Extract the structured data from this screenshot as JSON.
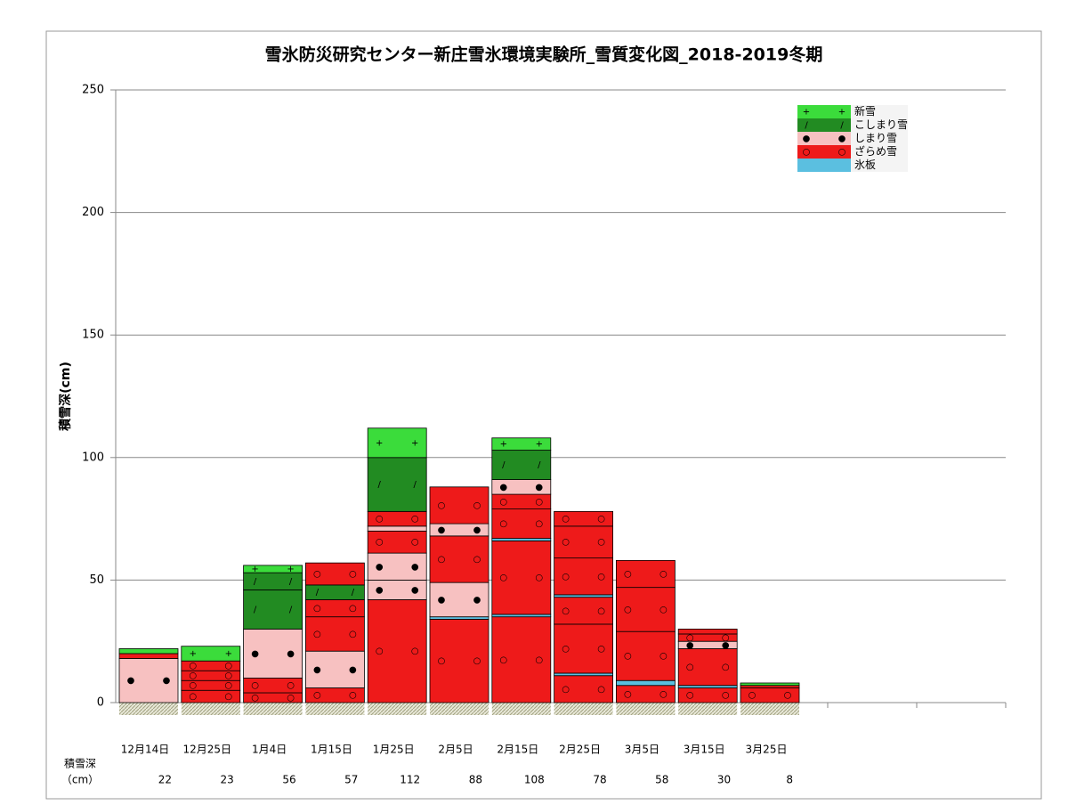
{
  "chart_data": {
    "type": "snow-profile",
    "title": "雪氷防災研究センター新庄雪氷環境実験所_雪質変化図_2018-2019冬期",
    "y_label": "積雪深(cm)",
    "depth_row_label": "積雪深",
    "depth_row_unit": "（cm）",
    "ylim": [
      0,
      250
    ],
    "yticks": [
      0,
      50,
      100,
      150,
      200,
      250
    ],
    "grid": true,
    "legend_position": "upper right",
    "layer_types": [
      {
        "name": "新雪",
        "color": "#3bdc3b",
        "symbol": "+"
      },
      {
        "name": "こしまり雪",
        "color": "#228b22",
        "symbol": "/"
      },
      {
        "name": "しまり雪",
        "color": "#f7c1c1",
        "symbol": "●"
      },
      {
        "name": "ざらめ雪",
        "color": "#ee1a1a",
        "symbol": "○"
      },
      {
        "name": "氷板",
        "color": "#5bbfe0",
        "symbol": "—"
      }
    ],
    "categories": [
      "12月14日",
      "12月25日",
      "1月4日",
      "1月15日",
      "1月25日",
      "2月5日",
      "2月15日",
      "2月25日",
      "3月5日",
      "3月15日",
      "3月25日"
    ],
    "values": [
      22,
      23,
      56,
      57,
      112,
      88,
      108,
      78,
      58,
      30,
      8
    ],
    "layers": [
      [
        {
          "type": 2,
          "thickness": 18
        },
        {
          "type": 3,
          "thickness": 2
        },
        {
          "type": 0,
          "thickness": 2
        }
      ],
      [
        {
          "type": 3,
          "thickness": 5
        },
        {
          "type": 3,
          "thickness": 4
        },
        {
          "type": 3,
          "thickness": 4
        },
        {
          "type": 3,
          "thickness": 4
        },
        {
          "type": 0,
          "thickness": 6
        }
      ],
      [
        {
          "type": 3,
          "thickness": 4
        },
        {
          "type": 3,
          "thickness": 6
        },
        {
          "type": 2,
          "thickness": 20
        },
        {
          "type": 1,
          "thickness": 16
        },
        {
          "type": 1,
          "thickness": 7
        },
        {
          "type": 0,
          "thickness": 3
        }
      ],
      [
        {
          "type": 3,
          "thickness": 6
        },
        {
          "type": 2,
          "thickness": 15
        },
        {
          "type": 3,
          "thickness": 14
        },
        {
          "type": 3,
          "thickness": 7
        },
        {
          "type": 1,
          "thickness": 6
        },
        {
          "type": 3,
          "thickness": 9
        }
      ],
      [
        {
          "type": 3,
          "thickness": 42
        },
        {
          "type": 2,
          "thickness": 8
        },
        {
          "type": 2,
          "thickness": 11
        },
        {
          "type": 3,
          "thickness": 9
        },
        {
          "type": 2,
          "thickness": 2
        },
        {
          "type": 3,
          "thickness": 6
        },
        {
          "type": 1,
          "thickness": 22
        },
        {
          "type": 0,
          "thickness": 12
        }
      ],
      [
        {
          "type": 3,
          "thickness": 34
        },
        {
          "type": 4,
          "thickness": 1
        },
        {
          "type": 2,
          "thickness": 14
        },
        {
          "type": 3,
          "thickness": 19
        },
        {
          "type": 2,
          "thickness": 5
        },
        {
          "type": 3,
          "thickness": 15
        }
      ],
      [
        {
          "type": 3,
          "thickness": 35
        },
        {
          "type": 4,
          "thickness": 1
        },
        {
          "type": 3,
          "thickness": 30
        },
        {
          "type": 4,
          "thickness": 1
        },
        {
          "type": 3,
          "thickness": 12
        },
        {
          "type": 3,
          "thickness": 6
        },
        {
          "type": 2,
          "thickness": 6
        },
        {
          "type": 1,
          "thickness": 12
        },
        {
          "type": 0,
          "thickness": 5
        }
      ],
      [
        {
          "type": 3,
          "thickness": 11
        },
        {
          "type": 4,
          "thickness": 1
        },
        {
          "type": 3,
          "thickness": 20
        },
        {
          "type": 3,
          "thickness": 11
        },
        {
          "type": 4,
          "thickness": 1
        },
        {
          "type": 3,
          "thickness": 15
        },
        {
          "type": 3,
          "thickness": 13
        },
        {
          "type": 3,
          "thickness": 6
        }
      ],
      [
        {
          "type": 3,
          "thickness": 7
        },
        {
          "type": 4,
          "thickness": 2
        },
        {
          "type": 3,
          "thickness": 20
        },
        {
          "type": 3,
          "thickness": 18
        },
        {
          "type": 3,
          "thickness": 11
        }
      ],
      [
        {
          "type": 3,
          "thickness": 6
        },
        {
          "type": 4,
          "thickness": 1
        },
        {
          "type": 3,
          "thickness": 15
        },
        {
          "type": 2,
          "thickness": 3
        },
        {
          "type": 3,
          "thickness": 3
        },
        {
          "type": 3,
          "thickness": 2
        }
      ],
      [
        {
          "type": 3,
          "thickness": 6
        },
        {
          "type": 3,
          "thickness": 1
        },
        {
          "type": 0,
          "thickness": 1
        }
      ]
    ]
  }
}
